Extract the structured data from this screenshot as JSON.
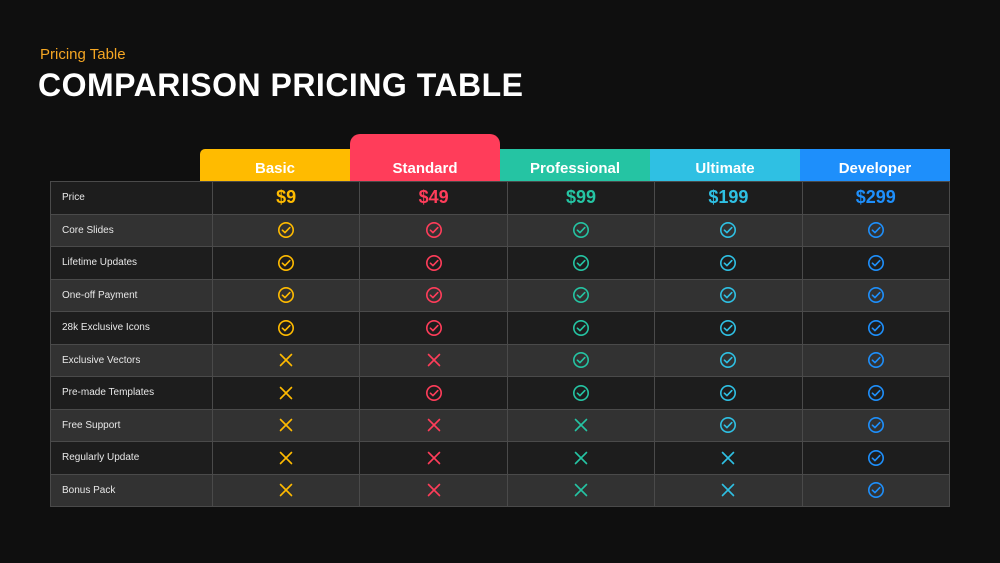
{
  "header": {
    "subtitle": "Pricing Table",
    "title": "COMPARISON PRICING TABLE"
  },
  "plans": [
    {
      "name": "Basic",
      "price": "$9",
      "color": "#ffbb00"
    },
    {
      "name": "Standard",
      "price": "$49",
      "color": "#ff3d5a"
    },
    {
      "name": "Professional",
      "price": "$99",
      "color": "#25c4a3"
    },
    {
      "name": "Ultimate",
      "price": "$199",
      "color": "#2fc0e3"
    },
    {
      "name": "Developer",
      "price": "$299",
      "color": "#1e8ffb"
    }
  ],
  "price_label": "Price",
  "features": [
    {
      "label": "Core Slides",
      "values": [
        true,
        true,
        true,
        true,
        true
      ]
    },
    {
      "label": "Lifetime Updates",
      "values": [
        true,
        true,
        true,
        true,
        true
      ]
    },
    {
      "label": "One-off Payment",
      "values": [
        true,
        true,
        true,
        true,
        true
      ]
    },
    {
      "label": "28k Exclusive Icons",
      "values": [
        true,
        true,
        true,
        true,
        true
      ]
    },
    {
      "label": "Exclusive Vectors",
      "values": [
        false,
        false,
        true,
        true,
        true
      ]
    },
    {
      "label": "Pre-made Templates",
      "values": [
        false,
        true,
        true,
        true,
        true
      ]
    },
    {
      "label": "Free Support",
      "values": [
        false,
        false,
        false,
        true,
        true
      ]
    },
    {
      "label": "Regularly Update",
      "values": [
        false,
        false,
        false,
        false,
        true
      ]
    },
    {
      "label": "Bonus Pack",
      "values": [
        false,
        false,
        false,
        false,
        true
      ]
    }
  ],
  "icons": {
    "included": "check-circle-icon",
    "excluded": "cross-icon"
  }
}
